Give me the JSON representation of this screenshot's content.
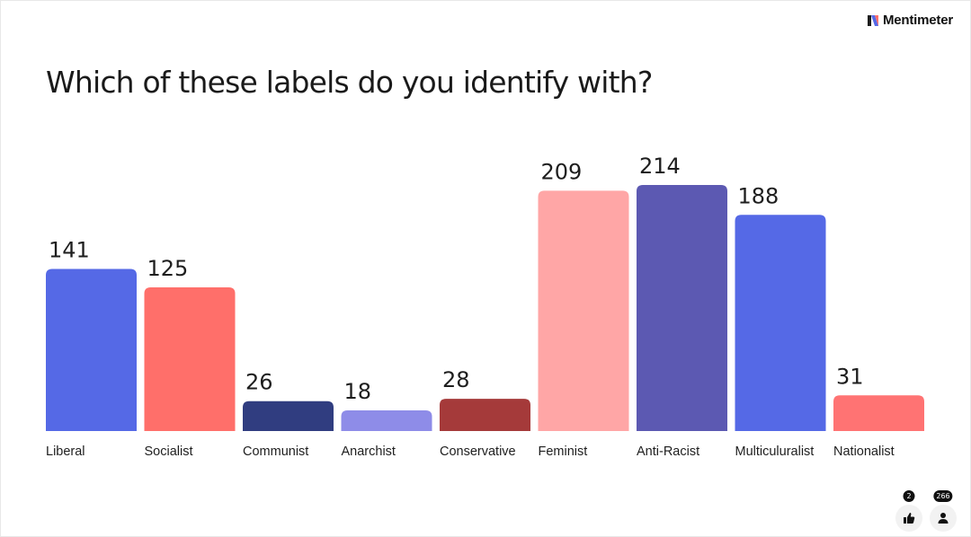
{
  "brand": {
    "name": "Mentimeter",
    "icon": "mentimeter-logo-icon"
  },
  "title": "Which of these labels do you identify with?",
  "chart_data": {
    "type": "bar",
    "title": "Which of these labels do you identify with?",
    "categories": [
      "Liberal",
      "Socialist",
      "Communist",
      "Anarchist",
      "Conservative",
      "Feminist",
      "Anti-Racist",
      "Multiculuralist",
      "Nationalist"
    ],
    "values": [
      141,
      125,
      26,
      18,
      28,
      209,
      214,
      188,
      31
    ],
    "colors": [
      "#5569e6",
      "#ff6f6a",
      "#303d80",
      "#8e8ce8",
      "#a53a3a",
      "#ffa6a6",
      "#5c59b2",
      "#5569e6",
      "#ff7373"
    ],
    "data_labels": true,
    "grid": false,
    "legend": "none",
    "xlabel": "",
    "ylabel": "",
    "ylim": [
      0,
      214
    ]
  },
  "footer": {
    "reactions": {
      "count": "2",
      "icon": "thumbs-up-icon"
    },
    "participants": {
      "count": "266",
      "icon": "person-icon"
    }
  }
}
